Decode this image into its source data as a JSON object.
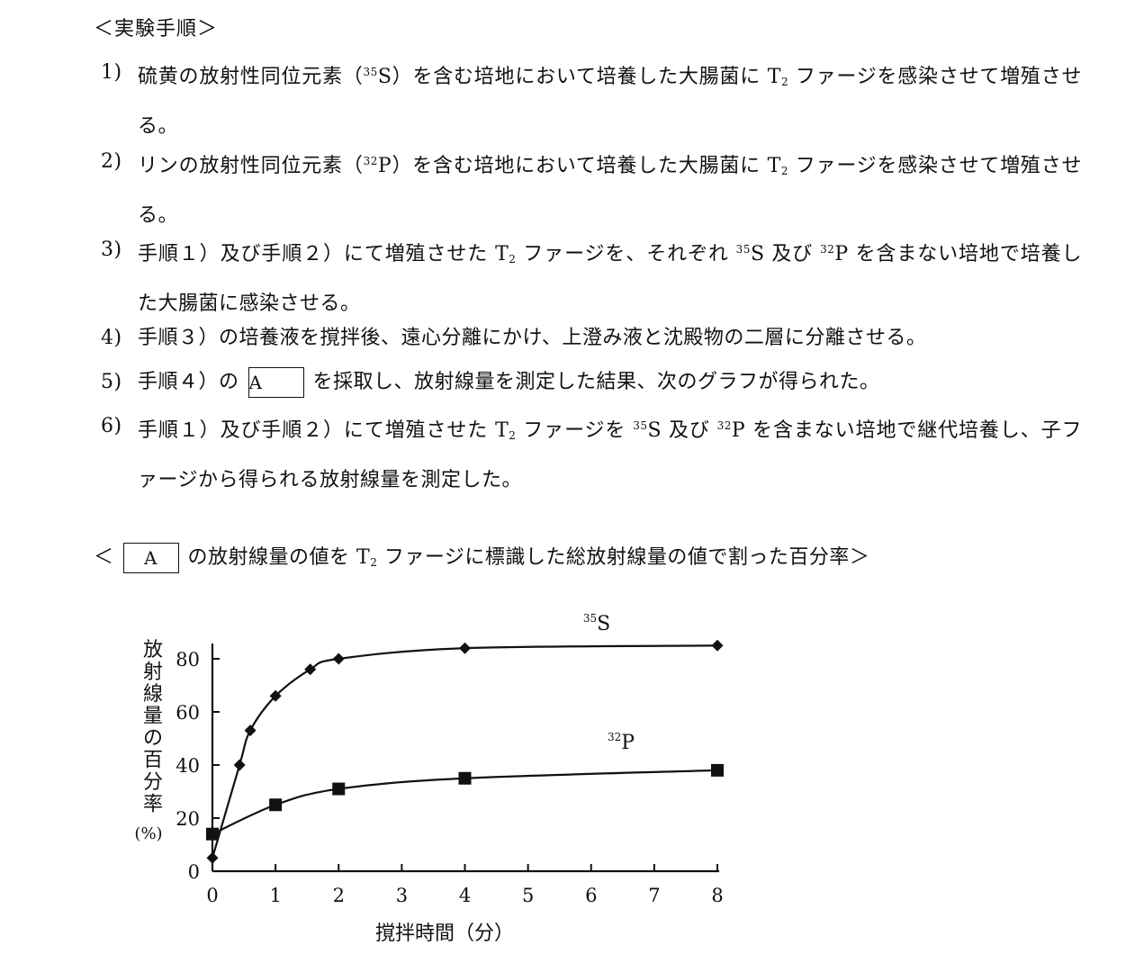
{
  "heading": "＜実験手順＞",
  "steps": [
    {
      "num": "1)",
      "p1": "硫黄の放射性同位元素（",
      "iso_mass": "35",
      "iso_sym": "S",
      "p2": "）を含む培地において培養した大腸菌に T",
      "t_sub": "2",
      "p3": " ファージを感染させて増殖させる。"
    },
    {
      "num": "2)",
      "p1": "リンの放射性同位元素（",
      "iso_mass": "32",
      "iso_sym": "P",
      "p2": "）を含む培地において培養した大腸菌に T",
      "t_sub": "2",
      "p3": " ファージを感染させて増殖させる。"
    },
    {
      "num": "3)",
      "p1": "手順１）及び手順２）にて増殖させた T",
      "t_sub": "2",
      "p2": " ファージを、それぞれ ",
      "m1": "35",
      "p3": "S 及び ",
      "m2": "32",
      "p4": "P を含まない培地で培養した大腸菌に感染させる。"
    },
    {
      "num": "4)",
      "text": "手順３）の培養液を撹拌後、遠心分離にかけ、上澄み液と沈殿物の二層に分離させる。"
    },
    {
      "num": "5)",
      "p1": "手順４）の",
      "box": "A",
      "p2": "を採取し、放射線量を測定した結果、次のグラフが得られた。"
    },
    {
      "num": "6)",
      "p1": "手順１）及び手順２）にて増殖させた T",
      "t_sub": "2",
      "p2": " ファージを ",
      "m1": "35",
      "p3": "S 及び ",
      "m2": "32",
      "p4": "P を含まない培地で継代培養し、子ファージから得られる放射線量を測定した。"
    }
  ],
  "caption": {
    "open": "＜",
    "box": "A",
    "p1": "の放射線量の値を T",
    "t_sub": "2",
    "p2": " ファージに標識した総放射線量の値で割った百分率＞"
  },
  "chart_data": {
    "type": "line",
    "xlabel": "撹拌時間（分）",
    "ylabel": "放射線量の百分率",
    "ylabel_unit": "(%)",
    "x_ticks": [
      "0",
      "1",
      "2",
      "3",
      "4",
      "5",
      "6",
      "7",
      "8"
    ],
    "x_tick_pos": [
      0,
      1,
      2,
      3,
      4,
      5,
      6,
      7,
      8
    ],
    "x_display": [
      0,
      1,
      2,
      3,
      4,
      5,
      6,
      7,
      8
    ],
    "y_ticks": [
      0,
      20,
      40,
      60,
      80
    ],
    "ylim": [
      0,
      85
    ],
    "series": [
      {
        "label_mass": "35",
        "label_sym": "S",
        "marker": "diamond",
        "x": [
          0,
          0.43,
          0.6,
          1.0,
          1.55,
          2.0,
          4.0,
          8.0
        ],
        "y": [
          5,
          40,
          53,
          66,
          76,
          80,
          84,
          85
        ]
      },
      {
        "label_mass": "32",
        "label_sym": "P",
        "marker": "square",
        "x": [
          0,
          1.0,
          2.0,
          4.0,
          8.0
        ],
        "y": [
          14,
          25,
          31,
          35,
          38
        ]
      }
    ]
  }
}
